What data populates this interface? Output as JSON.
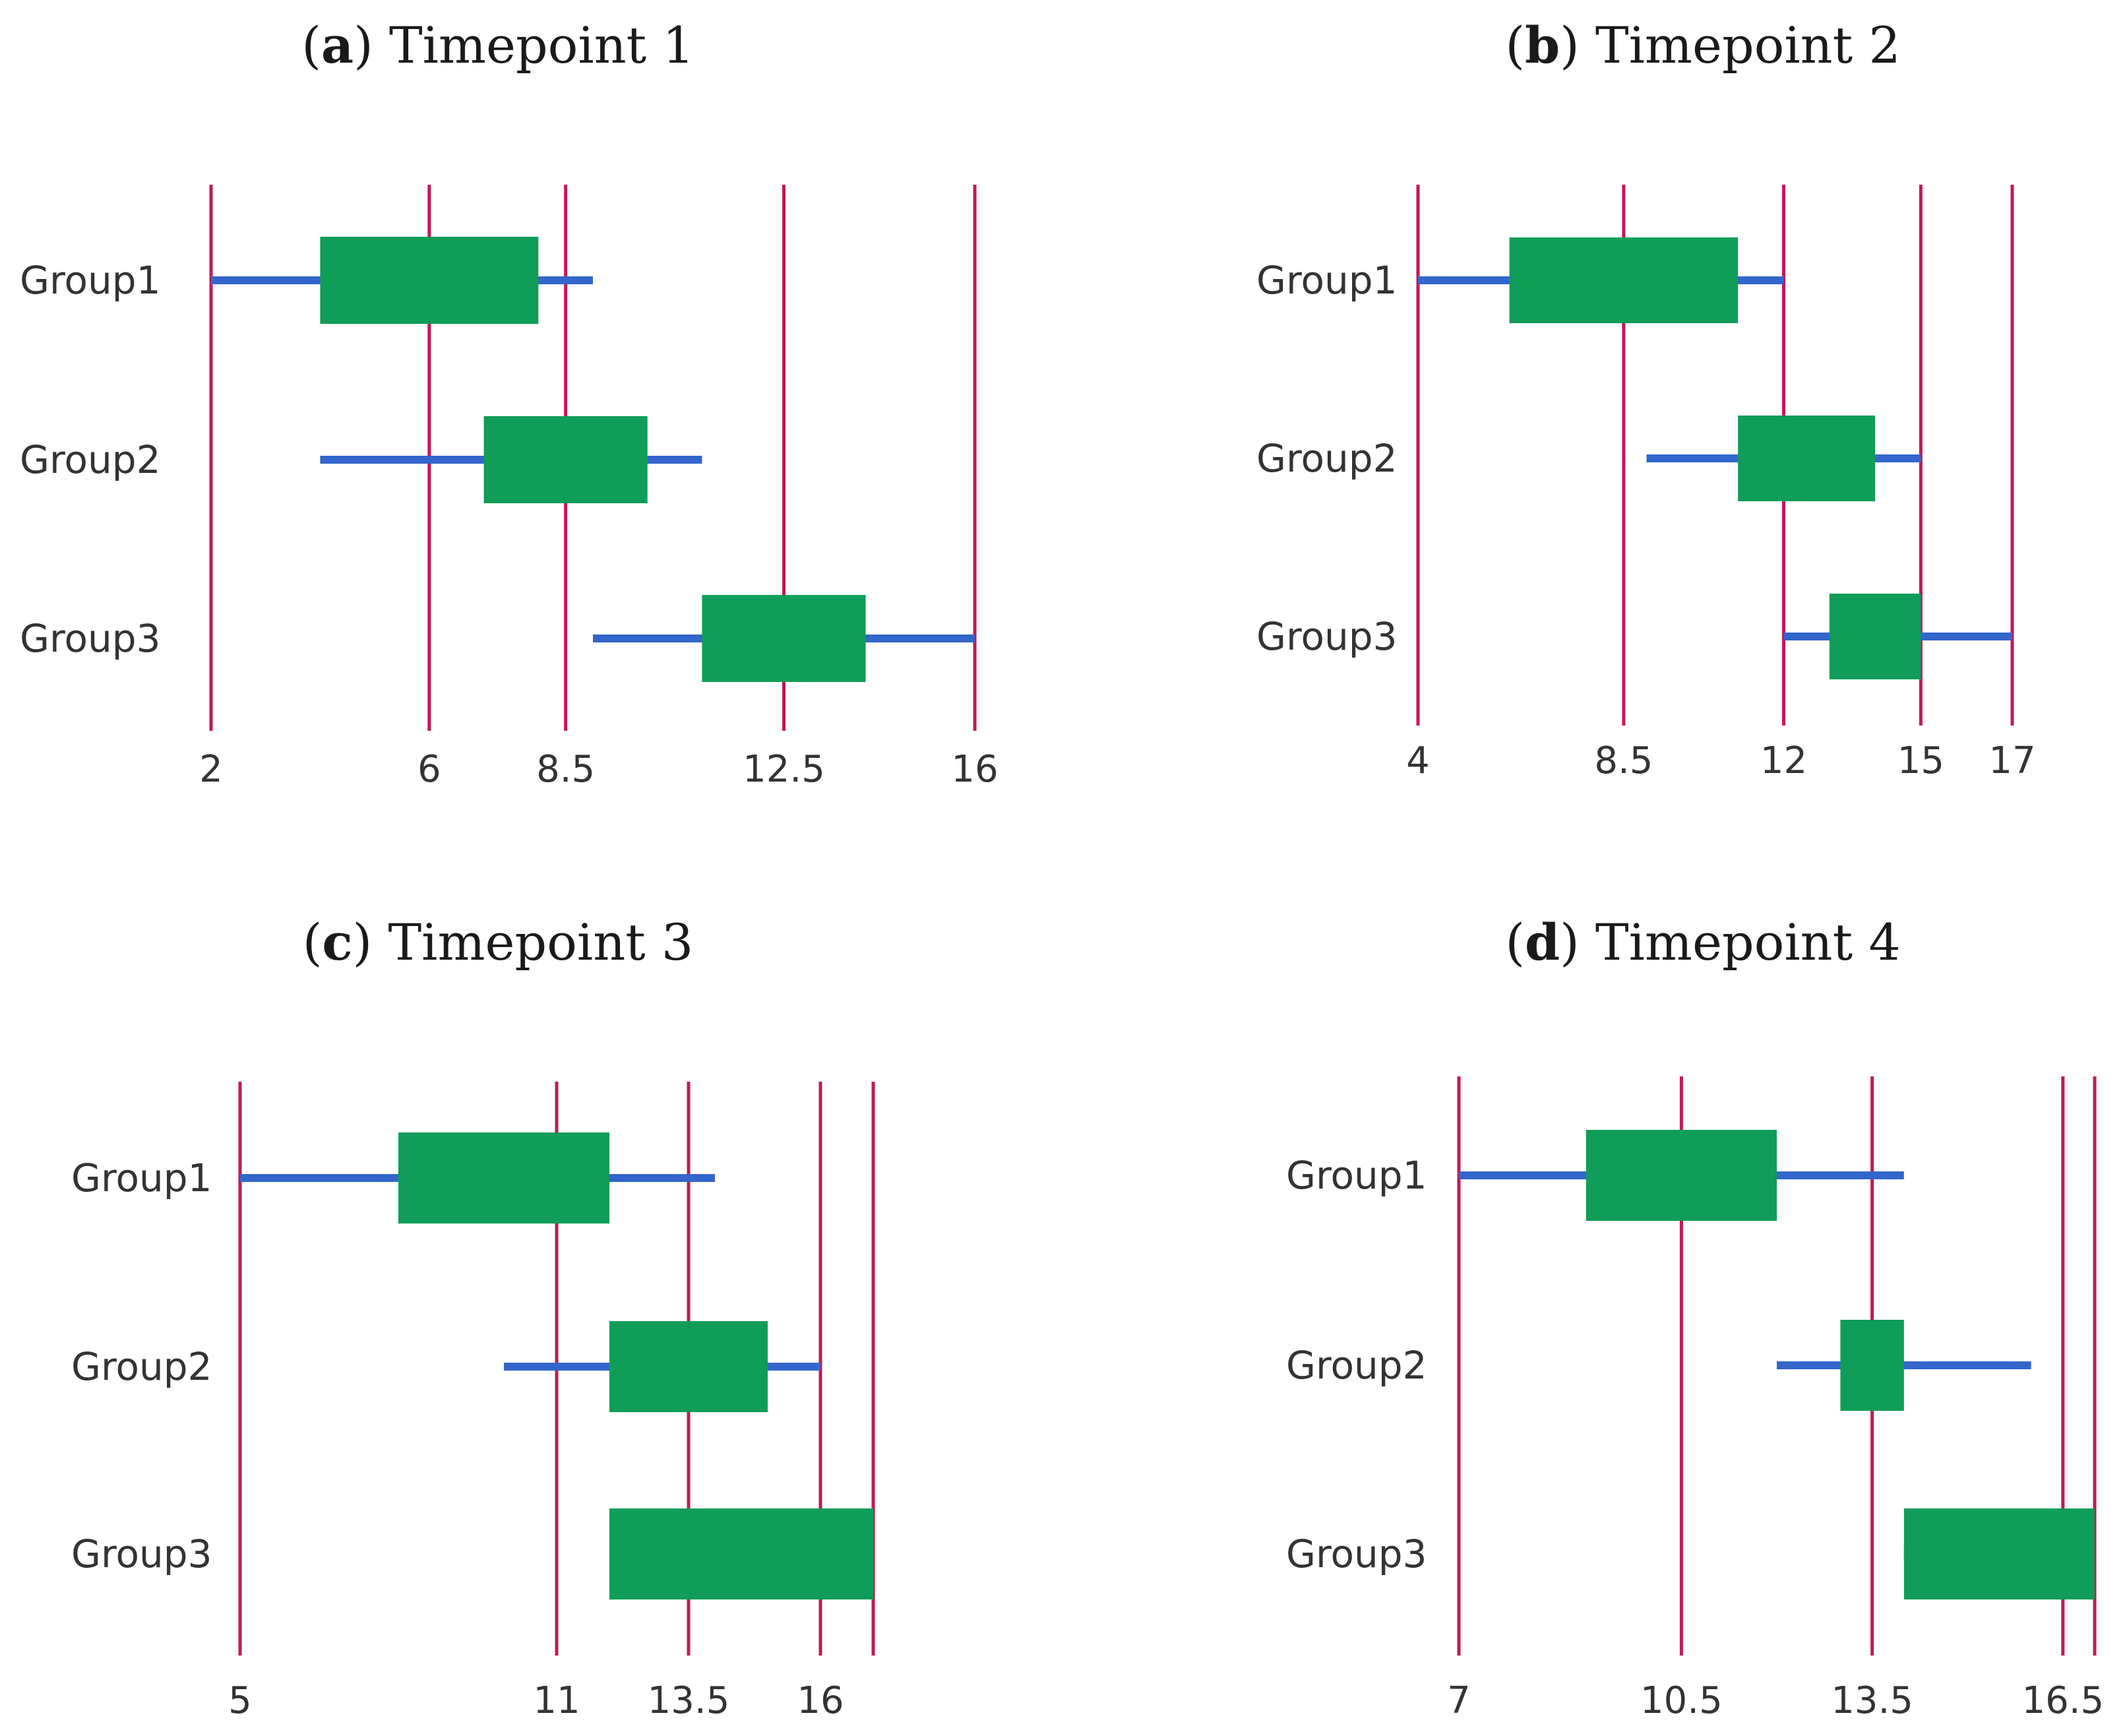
{
  "colors": {
    "box": "#0f9d58",
    "whisker": "#3366cc",
    "gridline": "#c2185b",
    "text": "#333333"
  },
  "chart_data": [
    {
      "type": "box",
      "panel_letter": "a",
      "title": "Timepoint 1",
      "categories": [
        "Group1",
        "Group2",
        "Group3"
      ],
      "xticks": [
        2,
        6,
        8.5,
        12.5,
        16
      ],
      "xlim": [
        2,
        16
      ],
      "series": [
        {
          "name": "Group1",
          "min": 2,
          "q1": 4,
          "q3": 8,
          "max": 9
        },
        {
          "name": "Group2",
          "min": 4,
          "q1": 7,
          "q3": 10,
          "max": 11
        },
        {
          "name": "Group3",
          "min": 9,
          "q1": 11,
          "q3": 14,
          "max": 16
        }
      ]
    },
    {
      "type": "box",
      "panel_letter": "b",
      "title": "Timepoint 2",
      "categories": [
        "Group1",
        "Group2",
        "Group3"
      ],
      "xticks": [
        4,
        8.5,
        12,
        15,
        17
      ],
      "xlim": [
        4,
        17
      ],
      "series": [
        {
          "name": "Group1",
          "min": 4,
          "q1": 6,
          "q3": 11,
          "max": 12
        },
        {
          "name": "Group2",
          "min": 9,
          "q1": 11,
          "q3": 14,
          "max": 15
        },
        {
          "name": "Group3",
          "min": 12,
          "q1": 13,
          "q3": 15,
          "max": 17
        }
      ]
    },
    {
      "type": "box",
      "panel_letter": "c",
      "title": "Timepoint 3",
      "categories": [
        "Group1",
        "Group2",
        "Group3"
      ],
      "xticks": [
        5,
        11,
        13.5,
        16,
        17
      ],
      "xticklabels": [
        "5",
        "11",
        "13.5",
        "16",
        ""
      ],
      "xlim": [
        5,
        17
      ],
      "series": [
        {
          "name": "Group1",
          "min": 5,
          "q1": 8,
          "q3": 12,
          "max": 14
        },
        {
          "name": "Group2",
          "min": 10,
          "q1": 12,
          "q3": 15,
          "max": 16
        },
        {
          "name": "Group3",
          "min": 12,
          "q1": 12,
          "q3": 17,
          "max": 17
        }
      ]
    },
    {
      "type": "box",
      "panel_letter": "d",
      "title": "Timepoint 4",
      "categories": [
        "Group1",
        "Group2",
        "Group3"
      ],
      "xticks": [
        7,
        10.5,
        13.5,
        16.5,
        17
      ],
      "xticklabels": [
        "7",
        "10.5",
        "13.5",
        "16.5",
        ""
      ],
      "xlim": [
        7,
        17
      ],
      "series": [
        {
          "name": "Group1",
          "min": 7,
          "q1": 9,
          "q3": 12,
          "max": 14
        },
        {
          "name": "Group2",
          "min": 12,
          "q1": 13,
          "q3": 14,
          "max": 16
        },
        {
          "name": "Group3",
          "min": 14,
          "q1": 14,
          "q3": 17,
          "max": 17
        }
      ]
    }
  ]
}
